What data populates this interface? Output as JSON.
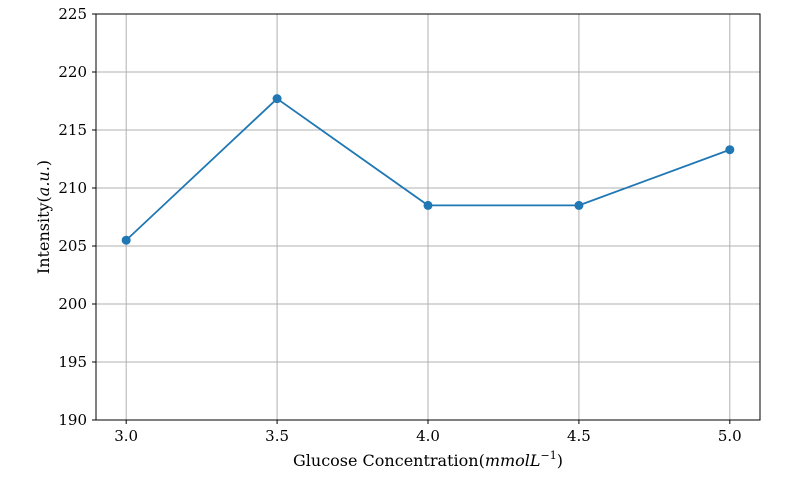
{
  "chart_data": {
    "type": "line",
    "x": [
      3.0,
      3.5,
      4.0,
      4.5,
      5.0
    ],
    "series": [
      {
        "values": [
          205.5,
          217.7,
          208.5,
          208.5,
          213.3
        ],
        "color": "#1f77b4",
        "marker": "circle"
      }
    ],
    "xlabel": {
      "prefix": "Glucose Concentration(",
      "unit_italic": "mmolL",
      "superscript": "−1",
      "suffix": ")"
    },
    "ylabel": {
      "prefix": "Intensity(",
      "unit_italic": "a.u.",
      "suffix": ")"
    },
    "xticks": [
      "3.0",
      "3.5",
      "4.0",
      "4.5",
      "5.0"
    ],
    "yticks": [
      "190",
      "195",
      "200",
      "205",
      "210",
      "215",
      "220",
      "225"
    ],
    "xlim": [
      2.9,
      5.1
    ],
    "ylim": [
      190,
      225
    ],
    "grid": true,
    "grid_color": "#b0b0b0"
  }
}
